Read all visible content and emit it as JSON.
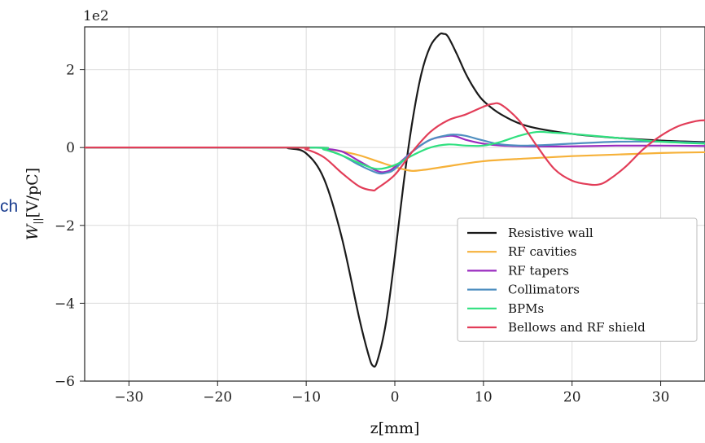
{
  "stray_text": "ch",
  "chart_data": {
    "type": "line",
    "xlabel": "z[mm]",
    "ylabel_main": "W",
    "ylabel_sub": "||",
    "ylabel_units": "[V/pC]",
    "y_multiplier": "1e2",
    "xlim": [
      -35,
      35
    ],
    "ylim": [
      -6,
      3.1
    ],
    "x_ticks": [
      -30,
      -20,
      -10,
      0,
      10,
      20,
      30
    ],
    "x_tick_labels": [
      "−30",
      "−20",
      "−10",
      "0",
      "10",
      "20",
      "30"
    ],
    "y_ticks": [
      -6,
      -4,
      -2,
      0,
      2
    ],
    "y_tick_labels": [
      "−6",
      "−4",
      "−2",
      "0",
      "2"
    ],
    "grid": true,
    "legend_position": "lower-right",
    "series": [
      {
        "name": "Resistive wall",
        "color": "#1a1a1a",
        "x": [
          -35,
          -14,
          -12,
          -10,
          -8,
          -6,
          -4,
          -3,
          -2.5,
          -2,
          -1,
          0,
          1,
          2,
          3,
          4,
          5,
          5.5,
          6,
          7,
          8,
          9,
          10,
          12,
          15,
          20,
          25,
          30,
          35
        ],
        "y": [
          0,
          0,
          -0.02,
          -0.15,
          -0.8,
          -2.3,
          -4.4,
          -5.3,
          -5.6,
          -5.5,
          -4.5,
          -2.8,
          -0.9,
          0.7,
          1.9,
          2.6,
          2.9,
          2.92,
          2.85,
          2.4,
          1.9,
          1.5,
          1.2,
          0.85,
          0.55,
          0.35,
          0.25,
          0.18,
          0.14
        ]
      },
      {
        "name": "RF cavities",
        "color": "#f6b139",
        "x": [
          -35,
          -10,
          -8,
          -6,
          -4,
          -2,
          0,
          1,
          2,
          3,
          4,
          6,
          10,
          15,
          20,
          25,
          30,
          35
        ],
        "y": [
          0,
          0,
          -0.03,
          -0.1,
          -0.2,
          -0.35,
          -0.5,
          -0.56,
          -0.6,
          -0.58,
          -0.55,
          -0.48,
          -0.35,
          -0.28,
          -0.22,
          -0.18,
          -0.14,
          -0.12
        ]
      },
      {
        "name": "RF tapers",
        "color": "#9a2bbf",
        "x": [
          -35,
          -10,
          -8,
          -6,
          -4,
          -2,
          -1,
          0,
          2,
          4,
          6,
          7,
          8,
          10,
          12,
          15,
          20,
          25,
          30,
          35
        ],
        "y": [
          0,
          0,
          -0.03,
          -0.1,
          -0.35,
          -0.6,
          -0.62,
          -0.5,
          -0.1,
          0.2,
          0.3,
          0.28,
          0.2,
          0.1,
          0.05,
          0.03,
          0.03,
          0.05,
          0.05,
          0.04
        ]
      },
      {
        "name": "Collimators",
        "color": "#4f8fc0",
        "x": [
          -35,
          -10,
          -8,
          -6,
          -4,
          -2,
          -1,
          0,
          2,
          4,
          6,
          7,
          8,
          10,
          12,
          15,
          20,
          25,
          30,
          35
        ],
        "y": [
          0,
          0,
          -0.05,
          -0.2,
          -0.45,
          -0.65,
          -0.65,
          -0.55,
          -0.1,
          0.2,
          0.32,
          0.33,
          0.3,
          0.18,
          0.08,
          0.05,
          0.1,
          0.15,
          0.15,
          0.12
        ]
      },
      {
        "name": "BPMs",
        "color": "#2fe07f",
        "x": [
          -35,
          -10,
          -8,
          -6,
          -4,
          -2,
          0,
          2,
          4,
          6,
          8,
          10,
          12,
          14,
          16,
          18,
          20,
          25,
          30,
          35
        ],
        "y": [
          0,
          0,
          -0.05,
          -0.2,
          -0.4,
          -0.55,
          -0.45,
          -0.2,
          0,
          0.08,
          0.05,
          0.05,
          0.15,
          0.3,
          0.4,
          0.38,
          0.35,
          0.25,
          0.15,
          0.1
        ]
      },
      {
        "name": "Bellows and RF shield",
        "color": "#e23d58",
        "x": [
          -35,
          -12,
          -10,
          -8,
          -6,
          -4,
          -2.5,
          -2,
          0,
          2,
          4,
          6,
          8,
          10,
          11,
          12,
          14,
          16,
          18,
          20,
          22,
          23,
          24,
          26,
          28,
          30,
          32,
          34,
          35
        ],
        "y": [
          0,
          0,
          -0.05,
          -0.25,
          -0.65,
          -1.0,
          -1.1,
          -1.05,
          -0.7,
          -0.1,
          0.4,
          0.7,
          0.85,
          1.05,
          1.12,
          1.1,
          0.7,
          0.05,
          -0.55,
          -0.85,
          -0.95,
          -0.95,
          -0.85,
          -0.5,
          -0.05,
          0.3,
          0.55,
          0.68,
          0.7
        ]
      }
    ]
  }
}
